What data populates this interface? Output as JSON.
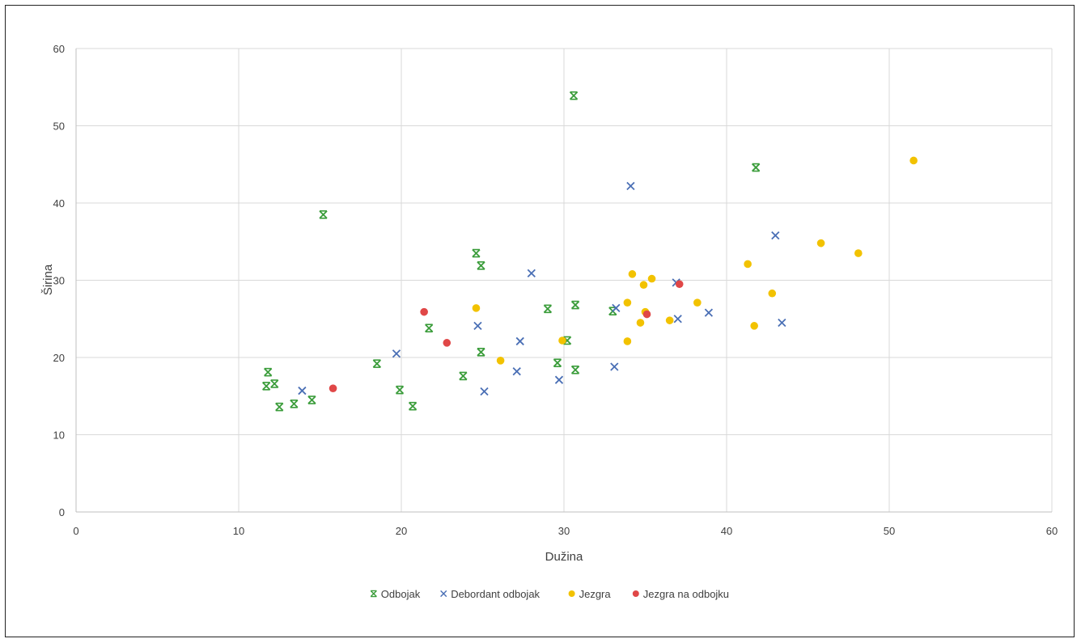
{
  "chart_data": {
    "type": "scatter",
    "title": "",
    "xlabel": "Dužina",
    "ylabel": "Širina",
    "xlim": [
      0,
      60
    ],
    "ylim": [
      0,
      60
    ],
    "x_ticks": [
      0,
      10,
      20,
      30,
      40,
      50,
      60
    ],
    "y_ticks": [
      0,
      10,
      20,
      30,
      40,
      50,
      60
    ],
    "grid": true,
    "legend_position": "bottom",
    "series": [
      {
        "name": "Odbojak",
        "marker": "x-bar",
        "color": "#3a9c3a",
        "points": [
          [
            11.7,
            16.3
          ],
          [
            11.8,
            18.1
          ],
          [
            12.2,
            16.6
          ],
          [
            12.5,
            13.6
          ],
          [
            13.4,
            14.0
          ],
          [
            14.5,
            14.5
          ],
          [
            15.2,
            38.5
          ],
          [
            18.5,
            19.2
          ],
          [
            19.9,
            15.8
          ],
          [
            20.7,
            13.7
          ],
          [
            21.7,
            23.8
          ],
          [
            23.8,
            17.6
          ],
          [
            24.6,
            33.5
          ],
          [
            24.9,
            31.9
          ],
          [
            24.9,
            20.7
          ],
          [
            29.0,
            26.3
          ],
          [
            29.6,
            19.3
          ],
          [
            30.2,
            22.2
          ],
          [
            30.6,
            53.9
          ],
          [
            30.7,
            26.8
          ],
          [
            30.7,
            18.4
          ],
          [
            33.0,
            26.0
          ],
          [
            41.8,
            44.6
          ]
        ]
      },
      {
        "name": "Debordant odbojak",
        "marker": "x",
        "color": "#4a6fb5",
        "points": [
          [
            13.9,
            15.7
          ],
          [
            19.7,
            20.5
          ],
          [
            24.7,
            24.1
          ],
          [
            25.1,
            15.6
          ],
          [
            27.1,
            18.2
          ],
          [
            27.3,
            22.1
          ],
          [
            28.0,
            30.9
          ],
          [
            29.7,
            17.1
          ],
          [
            33.1,
            18.8
          ],
          [
            33.2,
            26.4
          ],
          [
            34.1,
            42.2
          ],
          [
            36.9,
            29.7
          ],
          [
            37.0,
            25.0
          ],
          [
            38.9,
            25.8
          ],
          [
            43.0,
            35.8
          ],
          [
            43.4,
            24.5
          ]
        ]
      },
      {
        "name": "Jezgra",
        "marker": "circle",
        "color": "#f2c200",
        "points": [
          [
            24.6,
            26.4
          ],
          [
            26.1,
            19.6
          ],
          [
            29.9,
            22.2
          ],
          [
            33.9,
            22.1
          ],
          [
            33.9,
            27.1
          ],
          [
            34.2,
            30.8
          ],
          [
            34.7,
            24.5
          ],
          [
            34.9,
            29.4
          ],
          [
            35.0,
            25.9
          ],
          [
            35.4,
            30.2
          ],
          [
            36.5,
            24.8
          ],
          [
            38.2,
            27.1
          ],
          [
            41.3,
            32.1
          ],
          [
            41.7,
            24.1
          ],
          [
            42.8,
            28.3
          ],
          [
            45.8,
            34.8
          ],
          [
            48.1,
            33.5
          ],
          [
            51.5,
            45.5
          ]
        ]
      },
      {
        "name": "Jezgra na odbojku",
        "marker": "circle",
        "color": "#e04747",
        "points": [
          [
            15.8,
            16.0
          ],
          [
            21.4,
            25.9
          ],
          [
            22.8,
            21.9
          ],
          [
            35.1,
            25.6
          ],
          [
            37.1,
            29.5
          ]
        ]
      }
    ]
  }
}
